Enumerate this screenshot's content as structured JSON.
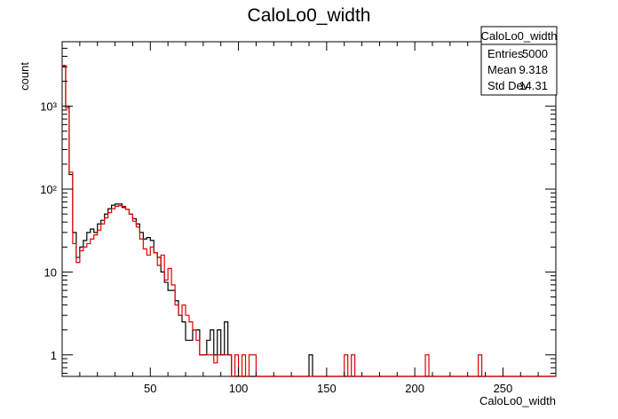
{
  "chart_data": {
    "type": "histogram",
    "title": "CaloLo0_width",
    "xlabel": "CaloLo0_width",
    "ylabel": "count",
    "xlim": [
      0,
      280
    ],
    "ylim": [
      0.55,
      6000
    ],
    "yscale": "log",
    "bin_width": 2,
    "x_ticks": [
      50,
      100,
      150,
      200,
      250
    ],
    "y_ticks": [
      {
        "value": 1,
        "label": "1"
      },
      {
        "value": 10,
        "label": "10"
      },
      {
        "value": 100,
        "label": "10²"
      },
      {
        "value": 1000,
        "label": "10³"
      }
    ],
    "stats_box": {
      "title": "CaloLo0_width",
      "rows": [
        {
          "label": "Entries",
          "value": "5000"
        },
        {
          "label": "Mean",
          "value": "9.318"
        },
        {
          "label": "Std Dev",
          "value": "14.31"
        }
      ]
    },
    "series": [
      {
        "color": "#000000",
        "bins": [
          [
            0,
            3000
          ],
          [
            2,
            1000
          ],
          [
            4,
            150
          ],
          [
            6,
            30
          ],
          [
            8,
            15
          ],
          [
            10,
            20
          ],
          [
            12,
            24
          ],
          [
            14,
            30
          ],
          [
            16,
            33
          ],
          [
            18,
            30
          ],
          [
            20,
            38
          ],
          [
            22,
            42
          ],
          [
            24,
            50
          ],
          [
            26,
            58
          ],
          [
            28,
            64
          ],
          [
            30,
            66
          ],
          [
            32,
            66
          ],
          [
            34,
            60
          ],
          [
            36,
            57
          ],
          [
            38,
            50
          ],
          [
            40,
            44
          ],
          [
            42,
            38
          ],
          [
            44,
            30
          ],
          [
            46,
            25
          ],
          [
            48,
            26
          ],
          [
            50,
            24
          ],
          [
            52,
            17
          ],
          [
            54,
            15
          ],
          [
            56,
            10
          ],
          [
            58,
            7.5
          ],
          [
            60,
            6
          ],
          [
            62,
            6
          ],
          [
            64,
            4.5
          ],
          [
            66,
            3
          ],
          [
            68,
            2.5
          ],
          [
            70,
            1.5
          ],
          [
            72,
            1.5
          ],
          [
            74,
            2
          ],
          [
            76,
            2
          ],
          [
            78,
            1
          ],
          [
            80,
            1
          ],
          [
            82,
            1.5
          ],
          [
            84,
            2
          ],
          [
            86,
            1
          ],
          [
            88,
            2
          ],
          [
            90,
            1
          ],
          [
            92,
            2.5
          ],
          [
            94,
            1
          ],
          [
            140,
            1
          ]
        ]
      },
      {
        "color": "#e00000",
        "bins": [
          [
            0,
            3100
          ],
          [
            2,
            950
          ],
          [
            4,
            160
          ],
          [
            6,
            22
          ],
          [
            8,
            13
          ],
          [
            10,
            18
          ],
          [
            12,
            20
          ],
          [
            14,
            22
          ],
          [
            16,
            25
          ],
          [
            18,
            28
          ],
          [
            20,
            32
          ],
          [
            22,
            38
          ],
          [
            24,
            45
          ],
          [
            26,
            52
          ],
          [
            28,
            58
          ],
          [
            30,
            62
          ],
          [
            32,
            63
          ],
          [
            34,
            62
          ],
          [
            36,
            57
          ],
          [
            38,
            50
          ],
          [
            40,
            41
          ],
          [
            42,
            35
          ],
          [
            44,
            25
          ],
          [
            46,
            19
          ],
          [
            48,
            16
          ],
          [
            50,
            20
          ],
          [
            52,
            17
          ],
          [
            54,
            12
          ],
          [
            56,
            16
          ],
          [
            58,
            8
          ],
          [
            60,
            11
          ],
          [
            62,
            7
          ],
          [
            64,
            4
          ],
          [
            66,
            3
          ],
          [
            68,
            4
          ],
          [
            70,
            3
          ],
          [
            72,
            2.5
          ],
          [
            74,
            2
          ],
          [
            76,
            1.5
          ],
          [
            78,
            1
          ],
          [
            80,
            1
          ],
          [
            82,
            1
          ],
          [
            84,
            1
          ],
          [
            86,
            0.8
          ],
          [
            88,
            1
          ],
          [
            90,
            1
          ],
          [
            92,
            1
          ],
          [
            94,
            1
          ],
          [
            98,
            1
          ],
          [
            102,
            1
          ],
          [
            106,
            1
          ],
          [
            108,
            1
          ],
          [
            160,
            1
          ],
          [
            164,
            1
          ],
          [
            206,
            1
          ],
          [
            236,
            1
          ]
        ]
      }
    ]
  }
}
